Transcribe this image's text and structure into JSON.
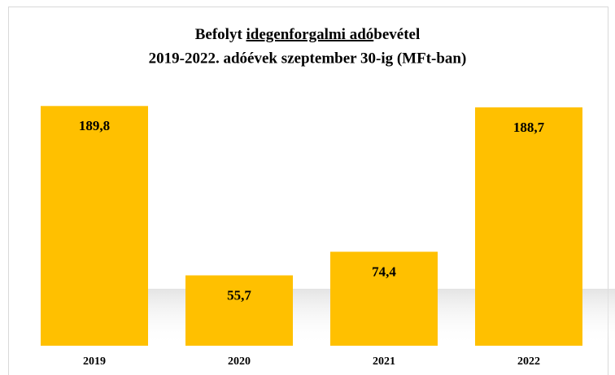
{
  "chart_data": {
    "type": "bar",
    "title": {
      "line1": [
        "Befolyt ",
        "idegenforgalmi adó",
        "bevétel"
      ],
      "line2": "2019-2022. adóévek szeptember 30-ig (MFt-ban)"
    },
    "categories": [
      "2019",
      "2020",
      "2021",
      "2022"
    ],
    "values": [
      189.8,
      55.7,
      74.4,
      188.7
    ],
    "value_labels": [
      "189,8",
      "55,7",
      "74,4",
      "188,7"
    ],
    "color": "#ffc000",
    "ylim": [
      0,
      190
    ]
  }
}
